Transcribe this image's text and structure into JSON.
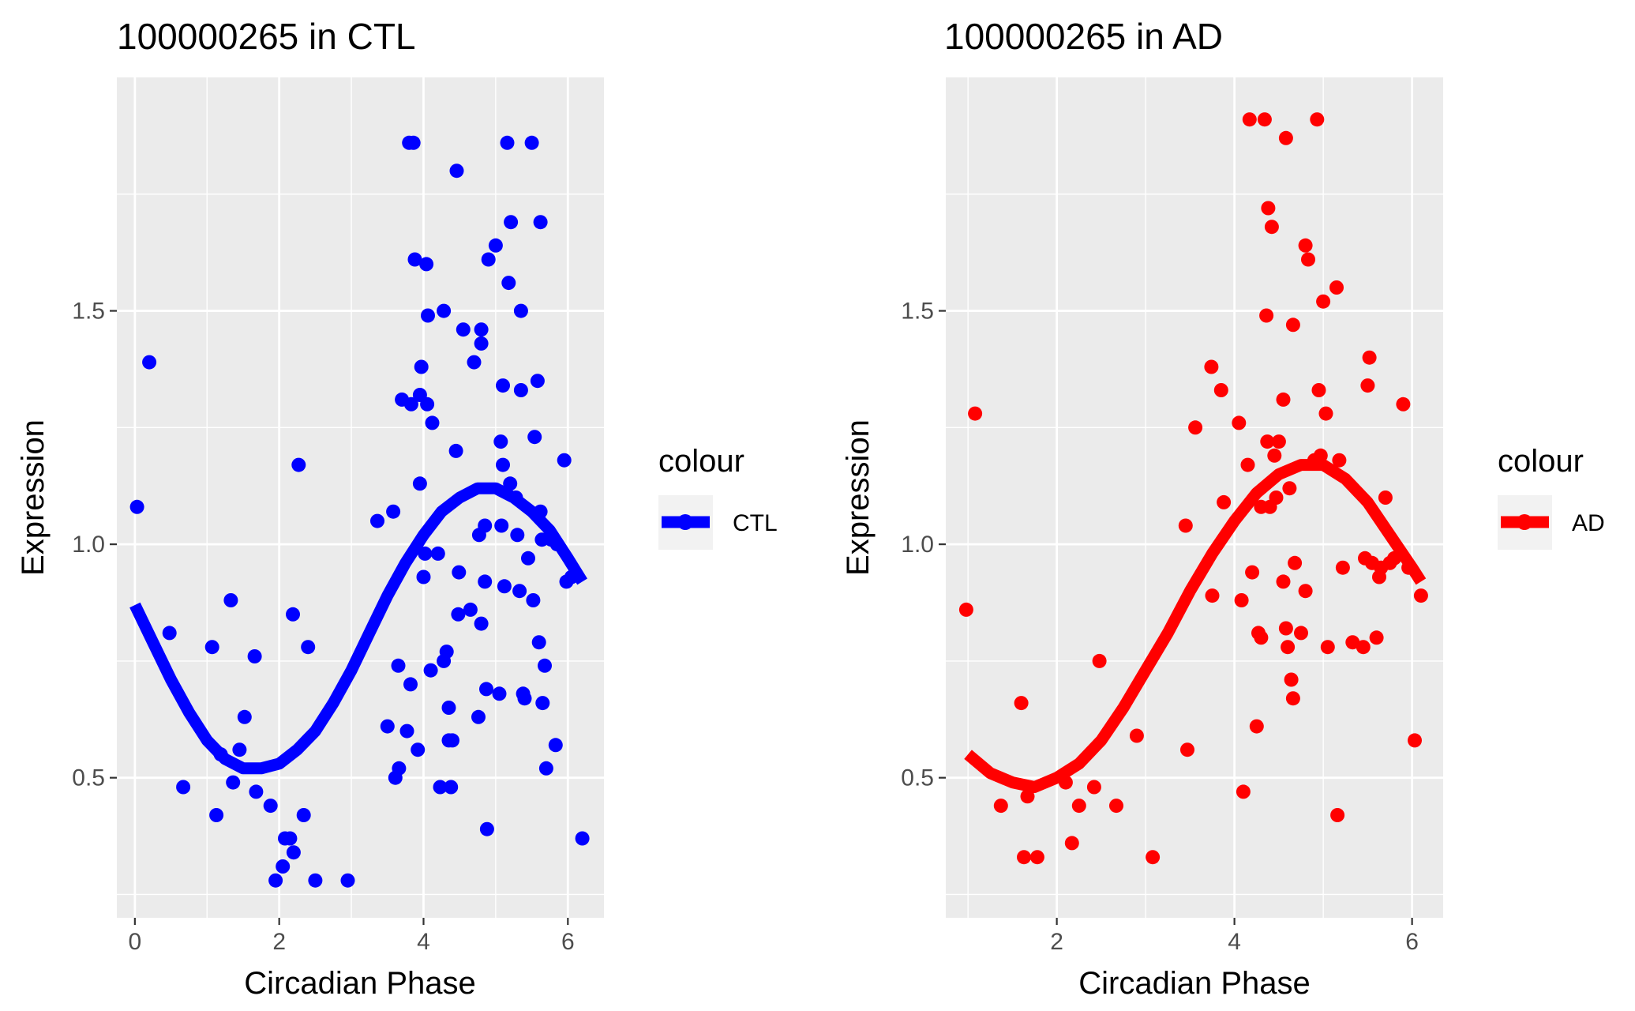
{
  "chart_data": [
    {
      "type": "scatter",
      "title": "100000265 in CTL",
      "xlabel": "Circadian Phase",
      "ylabel": "Expression",
      "xlim": [
        -0.25,
        6.5
      ],
      "ylim": [
        0.2,
        2.0
      ],
      "xticks": [
        0,
        2,
        4,
        6
      ],
      "yticks": [
        0.5,
        1.0,
        1.5
      ],
      "ytick_labels": [
        "0.5",
        "1.0",
        "1.5"
      ],
      "grid": true,
      "color": "#0000FF",
      "legend": {
        "title": "colour",
        "label": "CTL",
        "position": "right"
      },
      "points": [
        [
          0.03,
          1.08
        ],
        [
          0.2,
          1.39
        ],
        [
          0.48,
          0.81
        ],
        [
          0.67,
          0.48
        ],
        [
          1.07,
          0.78
        ],
        [
          1.13,
          0.42
        ],
        [
          1.19,
          0.55
        ],
        [
          1.33,
          0.88
        ],
        [
          1.36,
          0.49
        ],
        [
          1.45,
          0.56
        ],
        [
          1.52,
          0.63
        ],
        [
          1.66,
          0.76
        ],
        [
          1.68,
          0.47
        ],
        [
          1.88,
          0.44
        ],
        [
          1.95,
          0.28
        ],
        [
          2.05,
          0.31
        ],
        [
          2.08,
          0.37
        ],
        [
          2.15,
          0.37
        ],
        [
          2.2,
          0.34
        ],
        [
          2.19,
          0.85
        ],
        [
          2.27,
          1.17
        ],
        [
          2.34,
          0.42
        ],
        [
          2.4,
          0.78
        ],
        [
          2.5,
          0.28
        ],
        [
          2.95,
          0.28
        ],
        [
          3.36,
          1.05
        ],
        [
          3.5,
          0.61
        ],
        [
          3.58,
          1.07
        ],
        [
          3.61,
          0.5
        ],
        [
          3.66,
          0.52
        ],
        [
          3.65,
          0.74
        ],
        [
          3.7,
          1.31
        ],
        [
          3.77,
          0.6
        ],
        [
          3.8,
          1.86
        ],
        [
          3.82,
          0.7
        ],
        [
          3.83,
          1.3
        ],
        [
          3.86,
          1.86
        ],
        [
          3.88,
          1.61
        ],
        [
          3.92,
          0.56
        ],
        [
          3.95,
          1.13
        ],
        [
          3.95,
          1.32
        ],
        [
          3.97,
          1.38
        ],
        [
          4.0,
          0.93
        ],
        [
          4.02,
          0.98
        ],
        [
          4.05,
          1.3
        ],
        [
          4.04,
          1.6
        ],
        [
          4.06,
          1.49
        ],
        [
          4.1,
          0.73
        ],
        [
          4.12,
          1.26
        ],
        [
          4.2,
          0.98
        ],
        [
          4.23,
          0.48
        ],
        [
          4.28,
          0.75
        ],
        [
          4.28,
          1.5
        ],
        [
          4.32,
          0.77
        ],
        [
          4.35,
          0.58
        ],
        [
          4.35,
          0.65
        ],
        [
          4.38,
          0.48
        ],
        [
          4.4,
          0.58
        ],
        [
          4.45,
          1.2
        ],
        [
          4.46,
          1.8
        ],
        [
          4.48,
          0.85
        ],
        [
          4.49,
          0.94
        ],
        [
          4.55,
          1.46
        ],
        [
          4.65,
          0.86
        ],
        [
          4.7,
          1.39
        ],
        [
          4.76,
          0.63
        ],
        [
          4.77,
          1.02
        ],
        [
          4.8,
          0.83
        ],
        [
          4.8,
          1.43
        ],
        [
          4.8,
          1.46
        ],
        [
          4.85,
          0.92
        ],
        [
          4.85,
          1.04
        ],
        [
          4.9,
          1.61
        ],
        [
          4.87,
          0.69
        ],
        [
          4.88,
          0.39
        ],
        [
          5.0,
          1.64
        ],
        [
          5.05,
          0.68
        ],
        [
          5.07,
          1.22
        ],
        [
          5.08,
          1.04
        ],
        [
          5.1,
          1.34
        ],
        [
          5.1,
          1.17
        ],
        [
          5.12,
          0.91
        ],
        [
          5.16,
          1.86
        ],
        [
          5.18,
          1.56
        ],
        [
          5.2,
          1.13
        ],
        [
          5.21,
          1.69
        ],
        [
          5.28,
          1.1
        ],
        [
          5.3,
          1.02
        ],
        [
          5.35,
          1.5
        ],
        [
          5.33,
          0.9
        ],
        [
          5.35,
          1.33
        ],
        [
          5.38,
          0.68
        ],
        [
          5.4,
          0.67
        ],
        [
          5.45,
          0.97
        ],
        [
          5.5,
          1.86
        ],
        [
          5.52,
          0.88
        ],
        [
          5.54,
          1.23
        ],
        [
          5.58,
          1.35
        ],
        [
          5.6,
          0.79
        ],
        [
          5.62,
          1.69
        ],
        [
          5.62,
          1.07
        ],
        [
          5.64,
          1.01
        ],
        [
          5.65,
          0.66
        ],
        [
          5.68,
          0.74
        ],
        [
          5.7,
          0.52
        ],
        [
          5.77,
          1.01
        ],
        [
          5.83,
          0.57
        ],
        [
          5.85,
          1.0
        ],
        [
          5.95,
          1.18
        ],
        [
          5.98,
          0.92
        ],
        [
          6.05,
          0.93
        ],
        [
          6.2,
          0.37
        ]
      ],
      "fit": [
        [
          0.0,
          0.87
        ],
        [
          0.25,
          0.79
        ],
        [
          0.5,
          0.71
        ],
        [
          0.75,
          0.64
        ],
        [
          1.0,
          0.58
        ],
        [
          1.25,
          0.54
        ],
        [
          1.5,
          0.52
        ],
        [
          1.75,
          0.52
        ],
        [
          2.0,
          0.53
        ],
        [
          2.25,
          0.56
        ],
        [
          2.5,
          0.6
        ],
        [
          2.75,
          0.66
        ],
        [
          3.0,
          0.73
        ],
        [
          3.25,
          0.81
        ],
        [
          3.5,
          0.89
        ],
        [
          3.75,
          0.96
        ],
        [
          4.0,
          1.02
        ],
        [
          4.25,
          1.07
        ],
        [
          4.5,
          1.1
        ],
        [
          4.75,
          1.12
        ],
        [
          5.0,
          1.12
        ],
        [
          5.25,
          1.1
        ],
        [
          5.5,
          1.07
        ],
        [
          5.75,
          1.03
        ],
        [
          6.0,
          0.97
        ],
        [
          6.2,
          0.92
        ]
      ]
    },
    {
      "type": "scatter",
      "title": "100000265 in AD",
      "xlabel": "Circadian Phase",
      "ylabel": "Expression",
      "xlim": [
        0.75,
        6.35
      ],
      "ylim": [
        0.2,
        2.0
      ],
      "xticks": [
        2,
        4,
        6
      ],
      "yticks": [
        0.5,
        1.0,
        1.5
      ],
      "ytick_labels": [
        "0.5",
        "1.0",
        "1.5"
      ],
      "grid": true,
      "color": "#FF0000",
      "legend": {
        "title": "colour",
        "label": "AD",
        "position": "right"
      },
      "points": [
        [
          0.98,
          0.86
        ],
        [
          1.08,
          1.28
        ],
        [
          1.37,
          0.44
        ],
        [
          1.6,
          0.66
        ],
        [
          1.63,
          0.33
        ],
        [
          1.67,
          0.46
        ],
        [
          1.78,
          0.33
        ],
        [
          2.1,
          0.49
        ],
        [
          2.17,
          0.36
        ],
        [
          2.25,
          0.44
        ],
        [
          2.42,
          0.48
        ],
        [
          2.48,
          0.75
        ],
        [
          2.67,
          0.44
        ],
        [
          2.9,
          0.59
        ],
        [
          3.08,
          0.33
        ],
        [
          3.45,
          1.04
        ],
        [
          3.47,
          0.56
        ],
        [
          3.56,
          1.25
        ],
        [
          3.74,
          1.38
        ],
        [
          3.75,
          0.89
        ],
        [
          3.85,
          1.33
        ],
        [
          3.88,
          1.09
        ],
        [
          4.05,
          1.26
        ],
        [
          4.08,
          0.88
        ],
        [
          4.1,
          0.47
        ],
        [
          4.15,
          1.17
        ],
        [
          4.17,
          1.91
        ],
        [
          4.2,
          0.94
        ],
        [
          4.25,
          0.61
        ],
        [
          4.27,
          0.81
        ],
        [
          4.3,
          0.8
        ],
        [
          4.3,
          1.08
        ],
        [
          4.34,
          1.91
        ],
        [
          4.36,
          1.49
        ],
        [
          4.37,
          1.22
        ],
        [
          4.38,
          1.72
        ],
        [
          4.4,
          1.08
        ],
        [
          4.42,
          1.68
        ],
        [
          4.45,
          1.19
        ],
        [
          4.47,
          1.1
        ],
        [
          4.5,
          1.22
        ],
        [
          4.55,
          1.31
        ],
        [
          4.55,
          0.92
        ],
        [
          4.58,
          0.82
        ],
        [
          4.58,
          1.87
        ],
        [
          4.6,
          0.78
        ],
        [
          4.62,
          1.12
        ],
        [
          4.64,
          0.71
        ],
        [
          4.66,
          0.67
        ],
        [
          4.66,
          1.47
        ],
        [
          4.68,
          0.96
        ],
        [
          4.75,
          0.81
        ],
        [
          4.8,
          0.9
        ],
        [
          4.8,
          1.64
        ],
        [
          4.83,
          1.61
        ],
        [
          4.9,
          1.18
        ],
        [
          4.93,
          1.91
        ],
        [
          4.95,
          1.33
        ],
        [
          4.97,
          1.19
        ],
        [
          5.0,
          1.52
        ],
        [
          5.03,
          1.28
        ],
        [
          5.05,
          0.78
        ],
        [
          5.15,
          1.55
        ],
        [
          5.16,
          0.42
        ],
        [
          5.18,
          1.18
        ],
        [
          5.22,
          0.95
        ],
        [
          5.33,
          0.79
        ],
        [
          5.45,
          0.78
        ],
        [
          5.47,
          0.97
        ],
        [
          5.5,
          1.34
        ],
        [
          5.52,
          1.4
        ],
        [
          5.55,
          0.96
        ],
        [
          5.6,
          0.8
        ],
        [
          5.63,
          0.93
        ],
        [
          5.65,
          0.95
        ],
        [
          5.7,
          1.1
        ],
        [
          5.75,
          0.96
        ],
        [
          5.8,
          0.97
        ],
        [
          5.9,
          1.3
        ],
        [
          5.96,
          0.95
        ],
        [
          6.03,
          0.58
        ],
        [
          6.1,
          0.89
        ]
      ],
      "fit": [
        [
          1.0,
          0.55
        ],
        [
          1.25,
          0.51
        ],
        [
          1.5,
          0.49
        ],
        [
          1.75,
          0.48
        ],
        [
          2.0,
          0.5
        ],
        [
          2.25,
          0.53
        ],
        [
          2.5,
          0.58
        ],
        [
          2.75,
          0.65
        ],
        [
          3.0,
          0.73
        ],
        [
          3.25,
          0.81
        ],
        [
          3.5,
          0.9
        ],
        [
          3.75,
          0.98
        ],
        [
          4.0,
          1.05
        ],
        [
          4.25,
          1.11
        ],
        [
          4.5,
          1.15
        ],
        [
          4.75,
          1.17
        ],
        [
          5.0,
          1.17
        ],
        [
          5.25,
          1.14
        ],
        [
          5.5,
          1.09
        ],
        [
          5.75,
          1.02
        ],
        [
          6.0,
          0.95
        ],
        [
          6.1,
          0.92
        ]
      ]
    }
  ]
}
